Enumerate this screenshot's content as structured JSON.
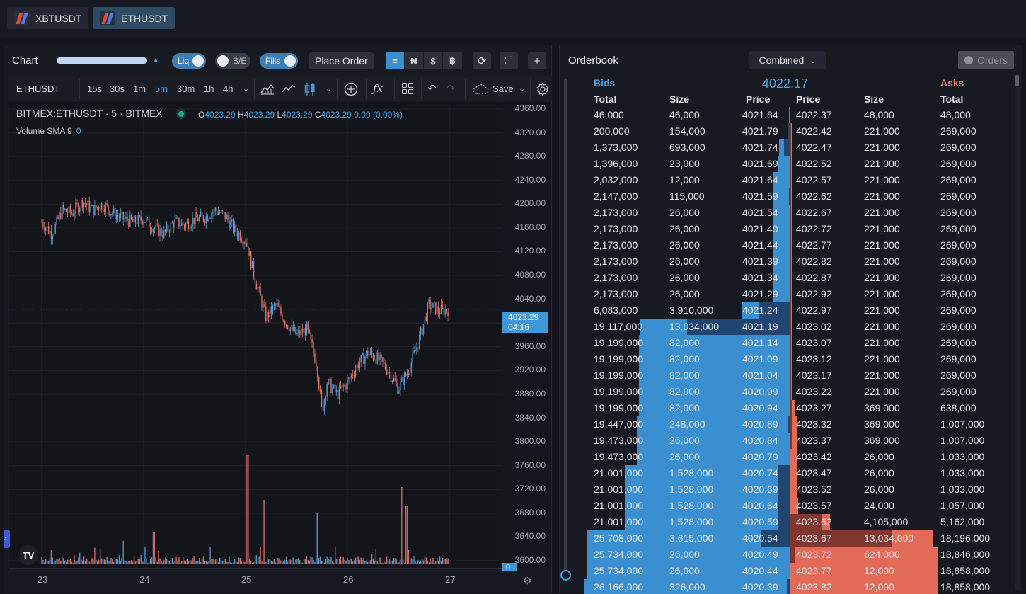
{
  "pairs": [
    "XBTUSDT",
    "ETHUSDT"
  ],
  "chart_panel": {
    "title": "Chart",
    "toggles": {
      "liq": "Liq",
      "be": "B/E",
      "fills": "Fills"
    },
    "place_order": "Place Order",
    "units": [
      "=",
      "₦",
      "$",
      "฿"
    ],
    "refresh_icon": "⟳",
    "fullscreen_icon": "⛶",
    "add_icon": "+"
  },
  "tv": {
    "symbol": "ETHUSDT",
    "timeframes": [
      "15s",
      "30s",
      "1m",
      "5m",
      "30m",
      "1h",
      "4h"
    ],
    "selected_timeframe": "5m",
    "save_label": "Save",
    "legend_symbol": "BITMEX:ETHUSDT · 5 · BITMEX",
    "ohlc": {
      "o": "4023.29",
      "h": "4023.29",
      "l": "4023.29",
      "c": "4023.29",
      "chg": "0.00 (0.00%)"
    },
    "volume_label": "Volume SMA 9",
    "volume_value": "0",
    "last_price": "4023.29",
    "countdown": "04:16",
    "volume_axis_label": "0"
  },
  "chart_data": {
    "type": "candlestick",
    "symbol": "BITMEX:ETHUSDT",
    "interval": "5",
    "y_ticks": [
      "4360.00",
      "4320.00",
      "4280.00",
      "4240.00",
      "4200.00",
      "4160.00",
      "4120.00",
      "4080.00",
      "4040.00",
      "4000.00",
      "3960.00",
      "3920.00",
      "3880.00",
      "3840.00",
      "3800.00",
      "3760.00",
      "3720.00",
      "3680.00",
      "3640.00",
      "3600.00"
    ],
    "x_ticks": [
      "23",
      "24",
      "25",
      "26",
      "27"
    ],
    "ylim": [
      3600,
      4360
    ],
    "last_price": 4023.29,
    "colors": {
      "up": "#5b9bd5",
      "down": "#e07366"
    },
    "price_path": [
      {
        "x": 23.0,
        "y": 4170
      },
      {
        "x": 23.1,
        "y": 4150
      },
      {
        "x": 23.2,
        "y": 4190
      },
      {
        "x": 23.3,
        "y": 4185
      },
      {
        "x": 23.4,
        "y": 4205
      },
      {
        "x": 23.5,
        "y": 4190
      },
      {
        "x": 23.6,
        "y": 4200
      },
      {
        "x": 23.7,
        "y": 4185
      },
      {
        "x": 23.8,
        "y": 4175
      },
      {
        "x": 23.9,
        "y": 4170
      },
      {
        "x": 24.0,
        "y": 4175
      },
      {
        "x": 24.1,
        "y": 4160
      },
      {
        "x": 24.2,
        "y": 4150
      },
      {
        "x": 24.3,
        "y": 4170
      },
      {
        "x": 24.4,
        "y": 4165
      },
      {
        "x": 24.5,
        "y": 4175
      },
      {
        "x": 24.6,
        "y": 4178
      },
      {
        "x": 24.7,
        "y": 4190
      },
      {
        "x": 24.8,
        "y": 4180
      },
      {
        "x": 24.9,
        "y": 4155
      },
      {
        "x": 25.0,
        "y": 4140
      },
      {
        "x": 25.1,
        "y": 4070
      },
      {
        "x": 25.2,
        "y": 4010
      },
      {
        "x": 25.3,
        "y": 4030
      },
      {
        "x": 25.4,
        "y": 4000
      },
      {
        "x": 25.5,
        "y": 3980
      },
      {
        "x": 25.6,
        "y": 3990
      },
      {
        "x": 25.7,
        "y": 3930
      },
      {
        "x": 25.75,
        "y": 3850
      },
      {
        "x": 25.8,
        "y": 3900
      },
      {
        "x": 25.9,
        "y": 3880
      },
      {
        "x": 26.0,
        "y": 3900
      },
      {
        "x": 26.1,
        "y": 3930
      },
      {
        "x": 26.2,
        "y": 3950
      },
      {
        "x": 26.3,
        "y": 3940
      },
      {
        "x": 26.4,
        "y": 3920
      },
      {
        "x": 26.5,
        "y": 3890
      },
      {
        "x": 26.6,
        "y": 3920
      },
      {
        "x": 26.7,
        "y": 3970
      },
      {
        "x": 26.8,
        "y": 4030
      },
      {
        "x": 26.9,
        "y": 4020
      },
      {
        "x": 27.0,
        "y": 4023.29
      }
    ],
    "volume_spikes": [
      {
        "x": 25.02,
        "v": 0.85
      },
      {
        "x": 25.18,
        "v": 0.5
      },
      {
        "x": 25.7,
        "v": 0.4
      },
      {
        "x": 26.53,
        "v": 0.6
      },
      {
        "x": 26.58,
        "v": 0.45
      },
      {
        "x": 24.1,
        "v": 0.25
      },
      {
        "x": 23.8,
        "v": 0.18
      }
    ]
  },
  "orderbook": {
    "title": "Orderbook",
    "mode": "Combined",
    "orders_button": "Orders",
    "mid_price": "4022.17",
    "bids_label": "Bids",
    "asks_label": "Asks",
    "headers": {
      "bid_total": "Total",
      "bid_size": "Size",
      "bid_price": "Price",
      "ask_price": "Price",
      "ask_size": "Size",
      "ask_total": "Total"
    },
    "colors": {
      "bid": "#3a8fd0",
      "ask": "#e46a58",
      "bid_hl": "#1e3d66",
      "ask_hl": "#6e2f27"
    },
    "rows": [
      {
        "bt": "46,000",
        "bs": "46,000",
        "bp": "4021.84",
        "ap": "4022.37",
        "as": "48,000",
        "at": "48,000"
      },
      {
        "bt": "200,000",
        "bs": "154,000",
        "bp": "4021.79",
        "ap": "4022.42",
        "as": "221,000",
        "at": "269,000"
      },
      {
        "bt": "1,373,000",
        "bs": "693,000",
        "bp": "4021.74",
        "ap": "4022.47",
        "as": "221,000",
        "at": "269,000"
      },
      {
        "bt": "1,396,000",
        "bs": "23,000",
        "bp": "4021.69",
        "ap": "4022.52",
        "as": "221,000",
        "at": "269,000"
      },
      {
        "bt": "2,032,000",
        "bs": "12,000",
        "bp": "4021.64",
        "ap": "4022.57",
        "as": "221,000",
        "at": "269,000"
      },
      {
        "bt": "2,147,000",
        "bs": "115,000",
        "bp": "4021.59",
        "ap": "4022.62",
        "as": "221,000",
        "at": "269,000"
      },
      {
        "bt": "2,173,000",
        "bs": "26,000",
        "bp": "4021.54",
        "ap": "4022.67",
        "as": "221,000",
        "at": "269,000"
      },
      {
        "bt": "2,173,000",
        "bs": "26,000",
        "bp": "4021.49",
        "ap": "4022.72",
        "as": "221,000",
        "at": "269,000"
      },
      {
        "bt": "2,173,000",
        "bs": "26,000",
        "bp": "4021.44",
        "ap": "4022.77",
        "as": "221,000",
        "at": "269,000"
      },
      {
        "bt": "2,173,000",
        "bs": "26,000",
        "bp": "4021.39",
        "ap": "4022.82",
        "as": "221,000",
        "at": "269,000"
      },
      {
        "bt": "2,173,000",
        "bs": "26,000",
        "bp": "4021.34",
        "ap": "4022.87",
        "as": "221,000",
        "at": "269,000"
      },
      {
        "bt": "2,173,000",
        "bs": "26,000",
        "bp": "4021.29",
        "ap": "4022.92",
        "as": "221,000",
        "at": "269,000"
      },
      {
        "bt": "6,083,000",
        "bs": "3,910,000",
        "bp": "4021.24",
        "ap": "4022.97",
        "as": "221,000",
        "at": "269,000"
      },
      {
        "bt": "19,117,000",
        "bs": "13,034,000",
        "bp": "4021.19",
        "ap": "4023.02",
        "as": "221,000",
        "at": "269,000"
      },
      {
        "bt": "19,199,000",
        "bs": "82,000",
        "bp": "4021.14",
        "ap": "4023.07",
        "as": "221,000",
        "at": "269,000"
      },
      {
        "bt": "19,199,000",
        "bs": "82,000",
        "bp": "4021.09",
        "ap": "4023.12",
        "as": "221,000",
        "at": "269,000"
      },
      {
        "bt": "19,199,000",
        "bs": "82,000",
        "bp": "4021.04",
        "ap": "4023.17",
        "as": "221,000",
        "at": "269,000"
      },
      {
        "bt": "19,199,000",
        "bs": "82,000",
        "bp": "4020.99",
        "ap": "4023.22",
        "as": "221,000",
        "at": "269,000"
      },
      {
        "bt": "19,199,000",
        "bs": "82,000",
        "bp": "4020.94",
        "ap": "4023.27",
        "as": "369,000",
        "at": "638,000"
      },
      {
        "bt": "19,447,000",
        "bs": "248,000",
        "bp": "4020.89",
        "ap": "4023.32",
        "as": "369,000",
        "at": "1,007,000"
      },
      {
        "bt": "19,473,000",
        "bs": "26,000",
        "bp": "4020.84",
        "ap": "4023.37",
        "as": "369,000",
        "at": "1,007,000"
      },
      {
        "bt": "19,473,000",
        "bs": "26,000",
        "bp": "4020.79",
        "ap": "4023.42",
        "as": "26,000",
        "at": "1,033,000"
      },
      {
        "bt": "21,001,000",
        "bs": "1,528,000",
        "bp": "4020.74",
        "ap": "4023.47",
        "as": "26,000",
        "at": "1,033,000"
      },
      {
        "bt": "21,001,000",
        "bs": "1,528,000",
        "bp": "4020.69",
        "ap": "4023.52",
        "as": "26,000",
        "at": "1,033,000"
      },
      {
        "bt": "21,001,000",
        "bs": "1,528,000",
        "bp": "4020.64",
        "ap": "4023.57",
        "as": "24,000",
        "at": "1,057,000"
      },
      {
        "bt": "21,001,000",
        "bs": "1,528,000",
        "bp": "4020.59",
        "ap": "4023.62",
        "as": "4,105,000",
        "at": "5,162,000"
      },
      {
        "bt": "25,708,000",
        "bs": "3,615,000",
        "bp": "4020.54",
        "ap": "4023.67",
        "as": "13,034,000",
        "at": "18,196,000"
      },
      {
        "bt": "25,734,000",
        "bs": "26,000",
        "bp": "4020.49",
        "ap": "4023.72",
        "as": "624,000",
        "at": "18,846,000"
      },
      {
        "bt": "25,734,000",
        "bs": "26,000",
        "bp": "4020.44",
        "ap": "4023.77",
        "as": "12,000",
        "at": "18,858,000"
      },
      {
        "bt": "26,166,000",
        "bs": "326,000",
        "bp": "4020.39",
        "ap": "4023.82",
        "as": "12,000",
        "at": "18,858,000"
      }
    ]
  }
}
